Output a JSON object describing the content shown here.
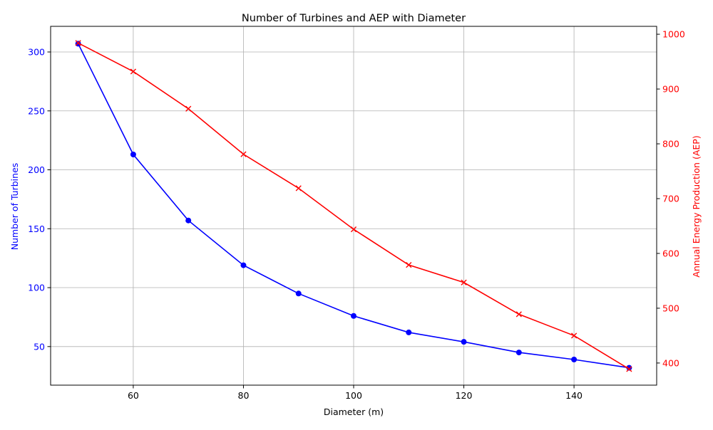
{
  "chart_data": {
    "type": "line",
    "title": "Number of Turbines and AEP with Diameter",
    "xlabel": "Diameter (m)",
    "xlim": [
      45,
      155
    ],
    "xticks": [
      60,
      80,
      100,
      120,
      140
    ],
    "grid": true,
    "left_axis": {
      "label": "Number of Turbines",
      "color": "#0000ff",
      "ylim": [
        17.25,
        321.75
      ],
      "ticks": [
        50,
        100,
        150,
        200,
        250,
        300
      ]
    },
    "right_axis": {
      "label": "Annual Energy Production (AEP)",
      "color": "#ff0000",
      "ylim": [
        359.6,
        1014.4
      ],
      "ticks": [
        400,
        500,
        600,
        700,
        800,
        900,
        1000
      ]
    },
    "x": [
      50,
      60,
      70,
      80,
      90,
      100,
      110,
      120,
      130,
      140,
      150
    ],
    "series": [
      {
        "axis": "left",
        "marker": "circle",
        "color": "#0000ff",
        "values": [
          307,
          213,
          157,
          119,
          95,
          76,
          62,
          54,
          45,
          39,
          32
        ]
      },
      {
        "axis": "right",
        "marker": "x",
        "color": "#ff0000",
        "values": [
          984,
          932,
          864,
          781,
          719,
          644,
          579,
          547,
          489,
          450,
          389
        ]
      }
    ]
  }
}
